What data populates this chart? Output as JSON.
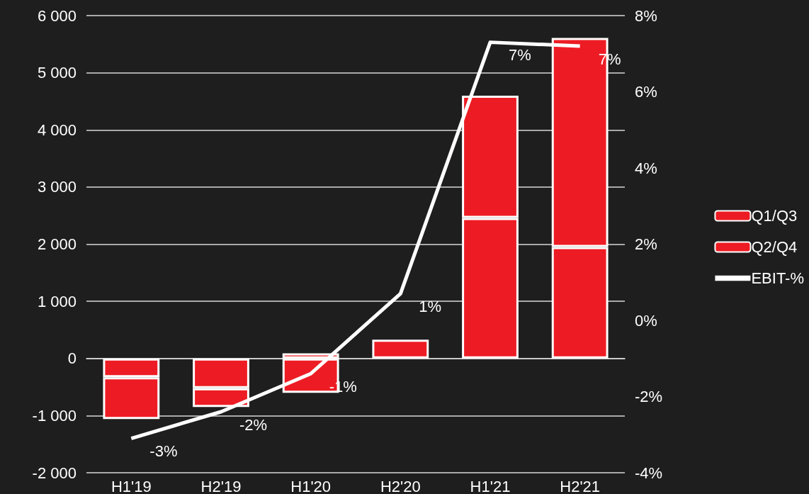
{
  "chart_data": {
    "type": "bar",
    "stacked": true,
    "categories": [
      "H1'19",
      "H2'19",
      "H1'20",
      "H2'20",
      "H1'21",
      "H2'21"
    ],
    "series": [
      {
        "name": "Q1/Q3",
        "color": "#ed1c24",
        "values": [
          -330,
          -520,
          90,
          330,
          2460,
          1950
        ]
      },
      {
        "name": "Q2/Q4",
        "color": "#ed1c24",
        "values": [
          -730,
          -330,
          -600,
          null,
          2140,
          3660
        ]
      },
      {
        "name": "EBIT-%",
        "type": "line",
        "axis": "y2",
        "color": "#ffffff",
        "marker": "none",
        "values": [
          -3.1,
          -2.4,
          -1.4,
          0.7,
          7.3,
          7.2
        ],
        "value_labels": [
          "-3%",
          "-2%",
          "-1%",
          "1%",
          "7%",
          "7%"
        ]
      }
    ],
    "ylim": [
      -2000,
      6000
    ],
    "yticks": [
      {
        "value": -2000,
        "label": "-2 000"
      },
      {
        "value": -1000,
        "label": "-1 000"
      },
      0,
      {
        "value": 1000,
        "label": "1 000"
      },
      {
        "value": 2000,
        "label": "2 000"
      },
      {
        "value": 3000,
        "label": "3 000"
      },
      {
        "value": 4000,
        "label": "4 000"
      },
      {
        "value": 5000,
        "label": "5 000"
      },
      {
        "value": 6000,
        "label": "6 000"
      }
    ],
    "y2lim": [
      -4,
      8
    ],
    "y2ticks": [
      {
        "value": -4,
        "label": "-4%"
      },
      {
        "value": -2,
        "label": "-2%"
      },
      {
        "value": 0,
        "label": "0%"
      },
      {
        "value": 2,
        "label": "2%"
      },
      {
        "value": 4,
        "label": "4%"
      },
      {
        "value": 6,
        "label": "6%"
      },
      {
        "value": 8,
        "label": "8%"
      }
    ],
    "grid": "y",
    "legend": "right"
  }
}
